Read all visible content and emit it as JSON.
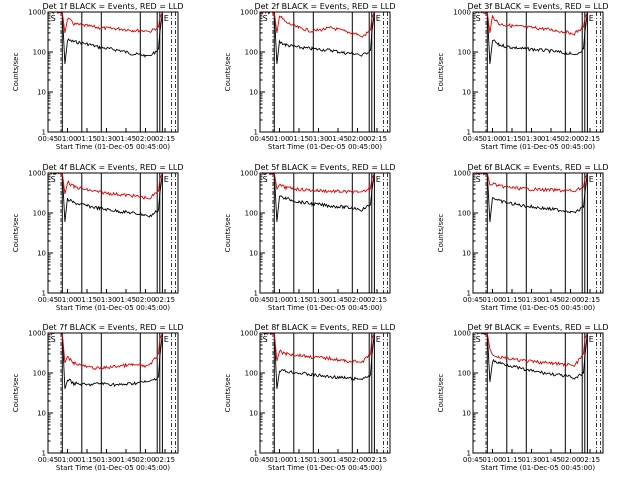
{
  "colors": {
    "events": "#000000",
    "lld": "#e00000",
    "axis": "#000000",
    "marker": "#000000"
  },
  "shared": {
    "xlabel": "Start Time (01-Dec-05 00:45:00)",
    "ylabel": "Counts/sec",
    "x_ticks": [
      "00:45",
      "01:00",
      "01:15",
      "01:30",
      "01:45",
      "02:00",
      "02:15"
    ],
    "y_ticks": [
      "1",
      "10",
      "100",
      "1000"
    ],
    "markers": [
      "S",
      "E"
    ]
  },
  "chart_data": [
    {
      "type": "line",
      "title": "Det 1f BLACK = Events, RED = LLD",
      "yscale": "log",
      "ylim": [
        1,
        1000
      ],
      "xlim": [
        "00:45",
        "02:25"
      ],
      "series": [
        {
          "name": "Events",
          "color": "black",
          "x": [
            2,
            11,
            13,
            15,
            20,
            30,
            40,
            55,
            65,
            75,
            78,
            85,
            86,
            88,
            91
          ],
          "y": [
            1000,
            1000,
            50,
            200,
            180,
            160,
            130,
            110,
            90,
            82,
            75,
            120,
            300,
            1000,
            1000
          ]
        },
        {
          "name": "LLD",
          "color": "red",
          "x": [
            0,
            2,
            11,
            13,
            15,
            20,
            30,
            40,
            55,
            65,
            75,
            78,
            85,
            86,
            88,
            91
          ],
          "y": [
            1000,
            1000,
            1000,
            300,
            700,
            500,
            450,
            400,
            380,
            350,
            340,
            320,
            420,
            700,
            1000,
            1000
          ]
        }
      ],
      "vlines": [
        11,
        26,
        41,
        71,
        84,
        86,
        88
      ],
      "dashdot": [
        10,
        95,
        98
      ]
    },
    {
      "type": "line",
      "title": "Det 2f BLACK = Events, RED = LLD",
      "yscale": "log",
      "ylim": [
        1,
        1000
      ],
      "xlim": [
        "00:45",
        "02:25"
      ],
      "series": [
        {
          "name": "Events",
          "color": "black",
          "x": [
            2,
            11,
            13,
            15,
            20,
            30,
            40,
            55,
            65,
            75,
            78,
            85,
            86,
            88,
            91
          ],
          "y": [
            1000,
            1000,
            50,
            180,
            150,
            130,
            120,
            110,
            95,
            90,
            80,
            110,
            300,
            1000,
            1000
          ]
        },
        {
          "name": "LLD",
          "color": "red",
          "x": [
            0,
            2,
            11,
            13,
            15,
            20,
            30,
            40,
            55,
            65,
            75,
            78,
            85,
            86,
            88,
            91
          ],
          "y": [
            1000,
            1000,
            1000,
            300,
            800,
            550,
            400,
            330,
            400,
            330,
            280,
            230,
            350,
            700,
            1000,
            1000
          ]
        }
      ],
      "vlines": [
        11,
        26,
        41,
        71,
        84,
        86,
        88
      ],
      "dashdot": [
        10,
        95,
        98
      ]
    },
    {
      "type": "line",
      "title": "Det 3f BLACK = Events, RED = LLD",
      "yscale": "log",
      "ylim": [
        1,
        1000
      ],
      "xlim": [
        "00:45",
        "02:25"
      ],
      "series": [
        {
          "name": "Events",
          "color": "black",
          "x": [
            2,
            11,
            13,
            15,
            20,
            30,
            40,
            55,
            65,
            75,
            78,
            85,
            86,
            88,
            91
          ],
          "y": [
            1000,
            1000,
            50,
            200,
            150,
            130,
            120,
            110,
            100,
            90,
            80,
            120,
            300,
            1000,
            1000
          ]
        },
        {
          "name": "LLD",
          "color": "red",
          "x": [
            0,
            2,
            11,
            13,
            15,
            20,
            30,
            40,
            55,
            65,
            75,
            78,
            85,
            86,
            88,
            91
          ],
          "y": [
            1000,
            1000,
            1000,
            300,
            800,
            500,
            450,
            420,
            380,
            340,
            300,
            290,
            420,
            700,
            1000,
            1000
          ]
        }
      ],
      "vlines": [
        11,
        26,
        41,
        71,
        84,
        86,
        88
      ],
      "dashdot": [
        10,
        95,
        98
      ]
    },
    {
      "type": "line",
      "title": "Det 4f BLACK = Events, RED = LLD",
      "yscale": "log",
      "ylim": [
        1,
        1000
      ],
      "xlim": [
        "00:45",
        "02:25"
      ],
      "series": [
        {
          "name": "Events",
          "color": "black",
          "x": [
            2,
            11,
            13,
            15,
            20,
            30,
            40,
            55,
            65,
            75,
            78,
            85,
            86,
            88,
            91
          ],
          "y": [
            1000,
            1000,
            60,
            220,
            180,
            150,
            130,
            110,
            100,
            90,
            80,
            120,
            300,
            1000,
            1000
          ]
        },
        {
          "name": "LLD",
          "color": "red",
          "x": [
            0,
            2,
            11,
            13,
            15,
            20,
            30,
            40,
            55,
            65,
            75,
            78,
            85,
            86,
            88,
            91
          ],
          "y": [
            1000,
            1000,
            1000,
            300,
            600,
            450,
            380,
            330,
            290,
            270,
            240,
            230,
            350,
            700,
            1000,
            1000
          ]
        }
      ],
      "vlines": [
        11,
        26,
        41,
        71,
        84,
        86,
        88
      ],
      "dashdot": [
        10,
        95,
        98
      ]
    },
    {
      "type": "line",
      "title": "Det 5f BLACK = Events, RED = LLD",
      "yscale": "log",
      "ylim": [
        1,
        1000
      ],
      "xlim": [
        "00:45",
        "02:25"
      ],
      "series": [
        {
          "name": "Events",
          "color": "black",
          "x": [
            2,
            11,
            13,
            15,
            20,
            30,
            40,
            55,
            65,
            75,
            78,
            85,
            86,
            88,
            91
          ],
          "y": [
            1000,
            1000,
            60,
            260,
            230,
            190,
            170,
            150,
            140,
            130,
            120,
            160,
            350,
            1000,
            1000
          ]
        },
        {
          "name": "LLD",
          "color": "red",
          "x": [
            0,
            2,
            11,
            13,
            15,
            20,
            30,
            40,
            55,
            65,
            75,
            78,
            85,
            86,
            88,
            91
          ],
          "y": [
            1000,
            1000,
            1000,
            400,
            500,
            430,
            390,
            370,
            350,
            340,
            330,
            320,
            420,
            700,
            1000,
            1000
          ]
        }
      ],
      "vlines": [
        11,
        26,
        41,
        71,
        84,
        86,
        88
      ],
      "dashdot": [
        10,
        95,
        98
      ]
    },
    {
      "type": "line",
      "title": "Det 6f BLACK = Events, RED = LLD",
      "yscale": "log",
      "ylim": [
        1,
        1000
      ],
      "xlim": [
        "00:45",
        "02:25"
      ],
      "series": [
        {
          "name": "Events",
          "color": "black",
          "x": [
            2,
            11,
            13,
            15,
            20,
            30,
            40,
            55,
            65,
            75,
            78,
            85,
            86,
            88,
            91
          ],
          "y": [
            1000,
            1000,
            60,
            250,
            200,
            170,
            150,
            130,
            120,
            110,
            100,
            140,
            300,
            1000,
            1000
          ]
        },
        {
          "name": "LLD",
          "color": "red",
          "x": [
            0,
            2,
            11,
            13,
            15,
            20,
            30,
            40,
            55,
            65,
            75,
            78,
            85,
            86,
            88,
            91
          ],
          "y": [
            1000,
            1000,
            1000,
            500,
            550,
            470,
            430,
            400,
            380,
            370,
            360,
            350,
            450,
            700,
            1000,
            1000
          ]
        }
      ],
      "vlines": [
        11,
        26,
        41,
        71,
        84,
        86,
        88
      ],
      "dashdot": [
        10,
        95,
        98
      ]
    },
    {
      "type": "line",
      "title": "Det 7f BLACK = Events, RED = LLD",
      "yscale": "log",
      "ylim": [
        1,
        1000
      ],
      "xlim": [
        "00:45",
        "02:25"
      ],
      "series": [
        {
          "name": "Events",
          "color": "black",
          "x": [
            2,
            11,
            13,
            15,
            20,
            30,
            40,
            55,
            65,
            75,
            78,
            85,
            86,
            88,
            91
          ],
          "y": [
            1000,
            1000,
            40,
            70,
            55,
            50,
            55,
            50,
            55,
            60,
            60,
            80,
            250,
            1000,
            1000
          ]
        },
        {
          "name": "LLD",
          "color": "red",
          "x": [
            0,
            2,
            11,
            13,
            15,
            20,
            30,
            40,
            55,
            65,
            75,
            78,
            85,
            86,
            88,
            91
          ],
          "y": [
            1000,
            1000,
            1000,
            180,
            250,
            180,
            140,
            130,
            150,
            160,
            150,
            150,
            300,
            700,
            1000,
            1000
          ]
        }
      ],
      "vlines": [
        11,
        26,
        41,
        71,
        84,
        86,
        88
      ],
      "dashdot": [
        10,
        95,
        98
      ]
    },
    {
      "type": "line",
      "title": "Det 8f BLACK = Events, RED = LLD",
      "yscale": "log",
      "ylim": [
        1,
        1000
      ],
      "xlim": [
        "00:45",
        "02:25"
      ],
      "series": [
        {
          "name": "Events",
          "color": "black",
          "x": [
            2,
            11,
            13,
            15,
            20,
            30,
            40,
            55,
            65,
            75,
            78,
            85,
            86,
            88,
            91
          ],
          "y": [
            1000,
            1000,
            40,
            120,
            110,
            100,
            90,
            80,
            75,
            70,
            70,
            90,
            250,
            1000,
            1000
          ]
        },
        {
          "name": "LLD",
          "color": "red",
          "x": [
            0,
            2,
            11,
            13,
            15,
            20,
            30,
            40,
            55,
            65,
            75,
            78,
            85,
            86,
            88,
            91
          ],
          "y": [
            1000,
            1000,
            1000,
            200,
            350,
            300,
            280,
            250,
            230,
            200,
            190,
            180,
            300,
            700,
            1000,
            1000
          ]
        }
      ],
      "vlines": [
        11,
        26,
        41,
        71,
        84,
        86,
        88
      ],
      "dashdot": [
        10,
        95,
        98
      ]
    },
    {
      "type": "line",
      "title": "Det 9f BLACK = Events, RED = LLD",
      "yscale": "log",
      "ylim": [
        1,
        1000
      ],
      "xlim": [
        "00:45",
        "02:25"
      ],
      "series": [
        {
          "name": "Events",
          "color": "black",
          "x": [
            2,
            11,
            13,
            15,
            20,
            30,
            40,
            55,
            65,
            75,
            78,
            85,
            86,
            88,
            91
          ],
          "y": [
            1000,
            1000,
            60,
            200,
            180,
            150,
            120,
            100,
            90,
            80,
            70,
            100,
            250,
            1000,
            1000
          ]
        },
        {
          "name": "LLD",
          "color": "red",
          "x": [
            0,
            2,
            11,
            13,
            15,
            20,
            30,
            40,
            55,
            65,
            75,
            78,
            85,
            86,
            88,
            91
          ],
          "y": [
            1000,
            1000,
            1000,
            400,
            300,
            250,
            220,
            200,
            180,
            170,
            160,
            150,
            300,
            700,
            1000,
            1000
          ]
        }
      ],
      "vlines": [
        11,
        26,
        41,
        71,
        84,
        86,
        88
      ],
      "dashdot": [
        10,
        95,
        98
      ]
    }
  ]
}
